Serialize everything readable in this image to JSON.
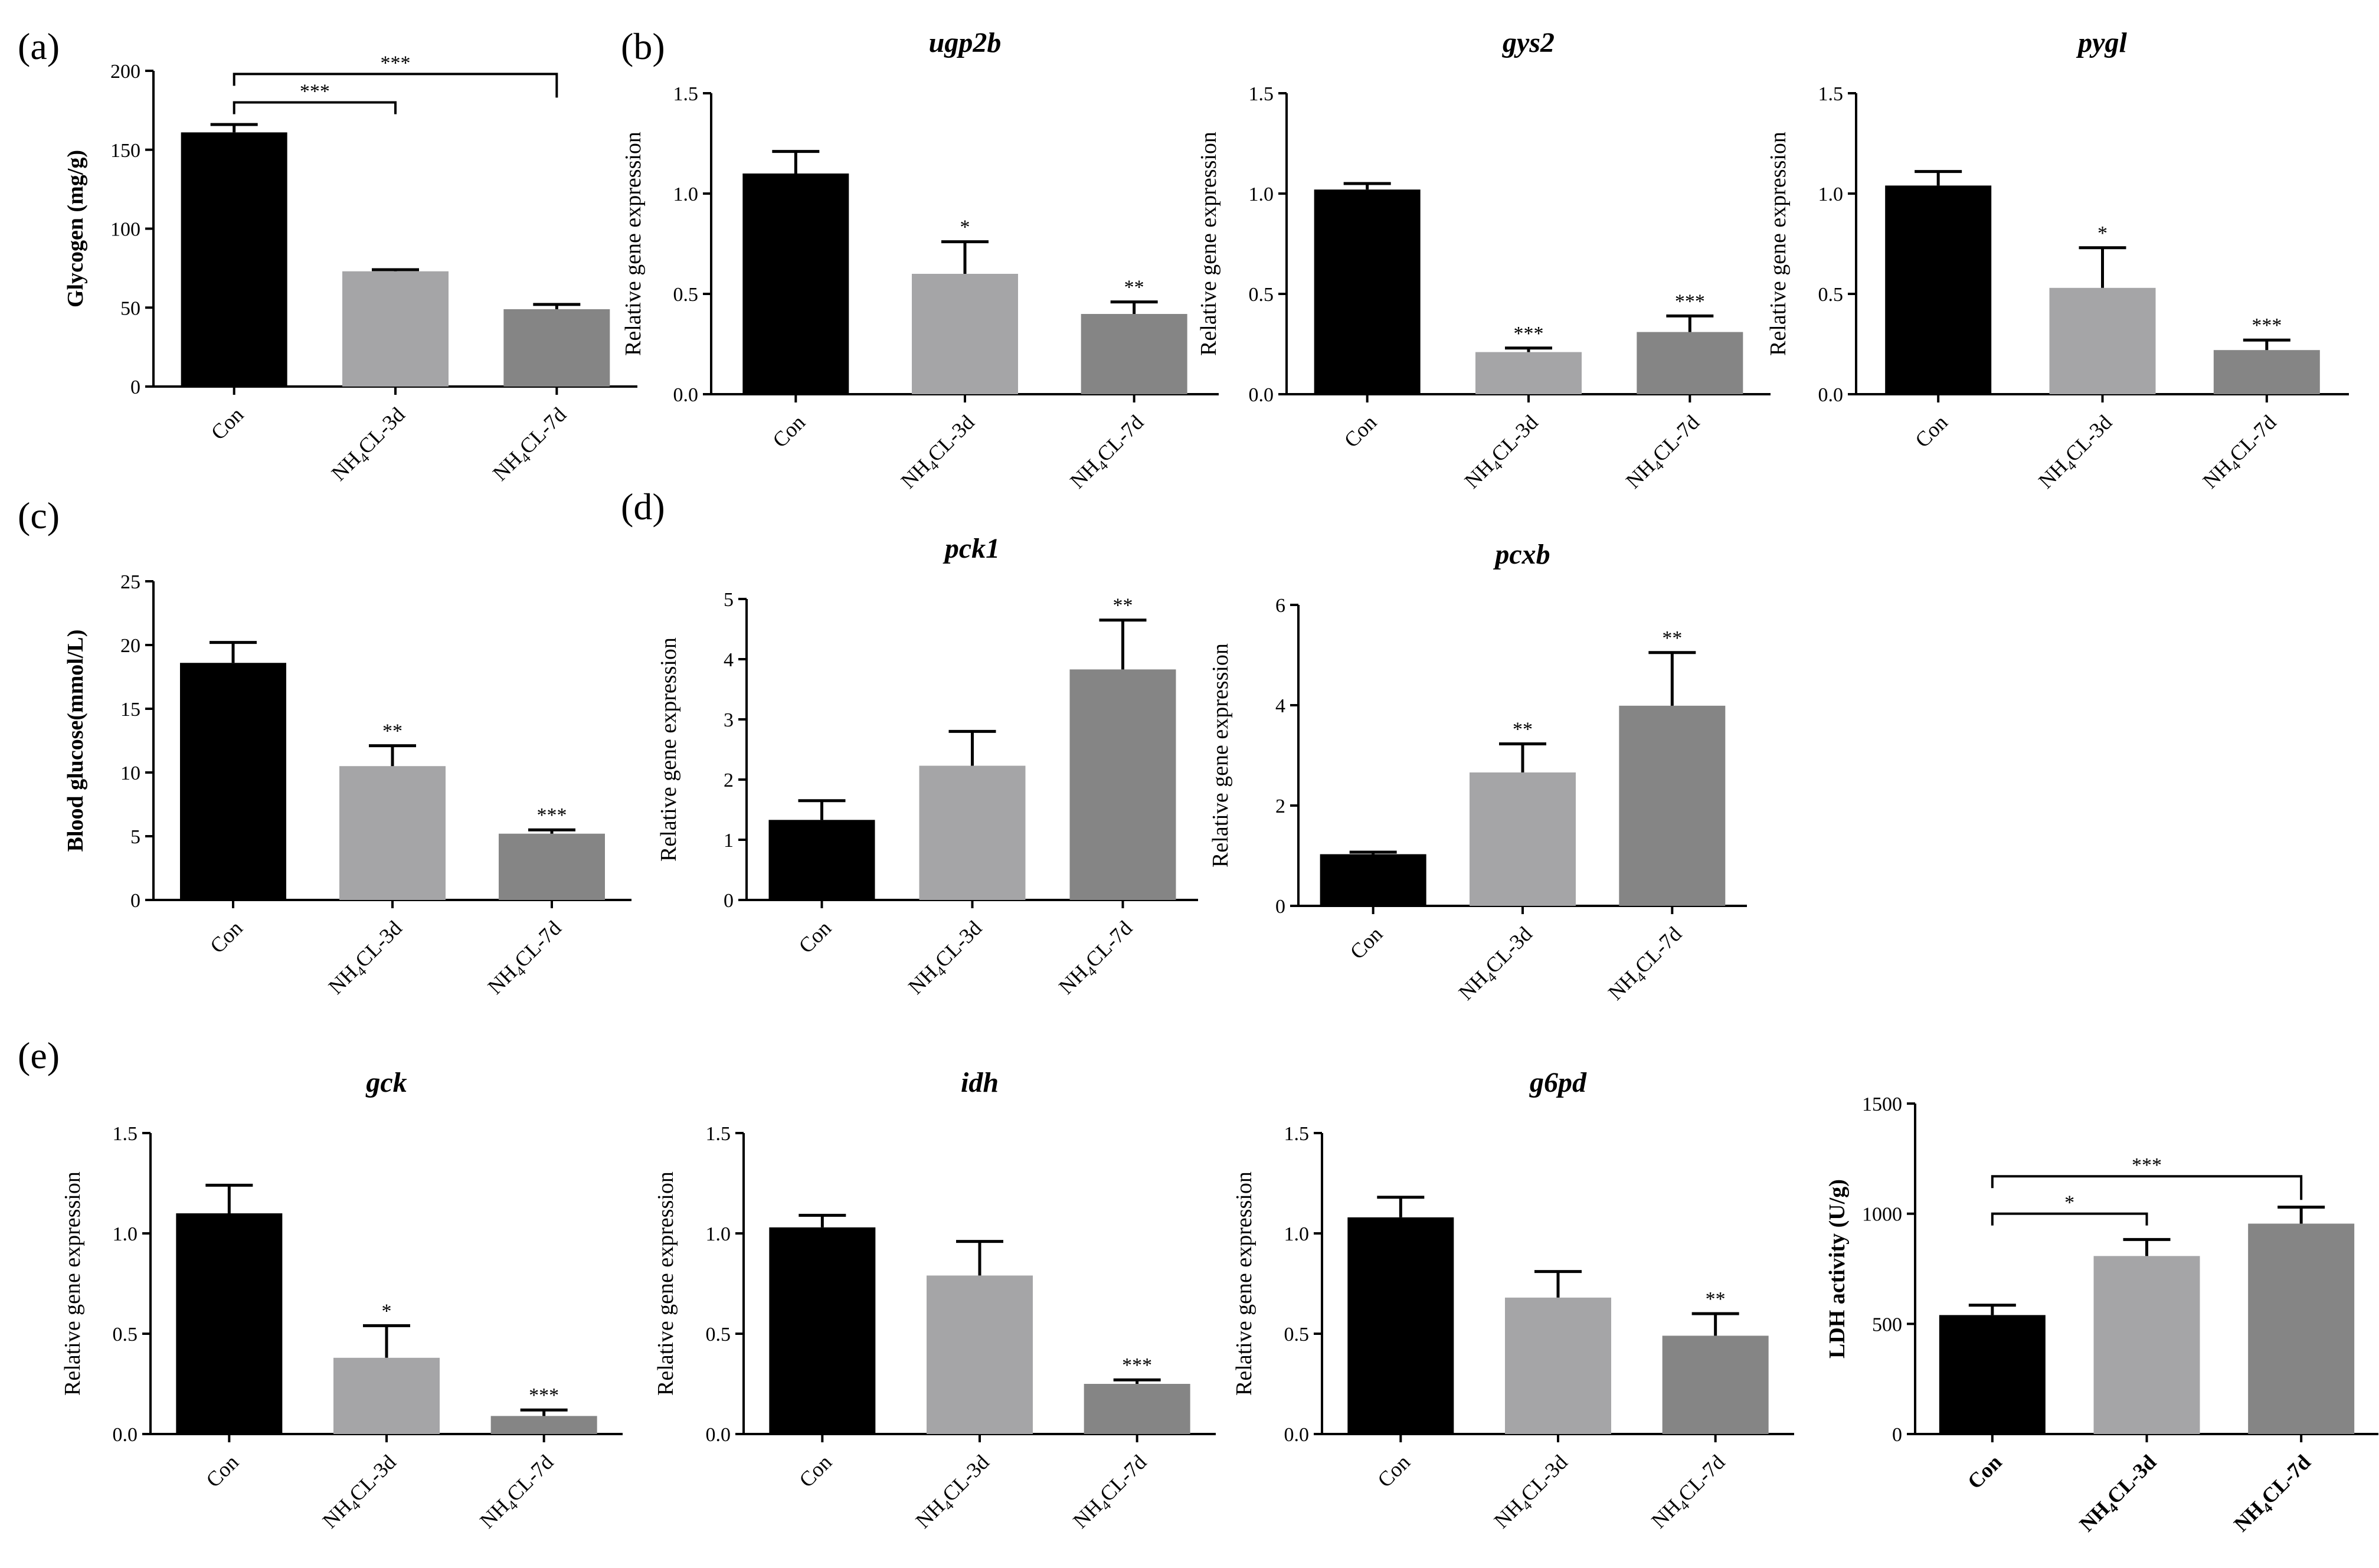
{
  "figure": {
    "panel_labels": [
      "(a)",
      "(b)",
      "(c)",
      "(d)",
      "(e)"
    ],
    "bar_colors": [
      "#000000",
      "#a5a5a7",
      "#858585"
    ]
  },
  "chart_data": [
    {
      "id": "a",
      "type": "bar",
      "title": "",
      "ylabel": "Glycogen (mg/g)",
      "ylabel_bold": true,
      "categories": [
        "Con",
        "NH4CL-3d",
        "NH4CL-7d"
      ],
      "values": [
        161,
        73,
        49
      ],
      "errors": [
        5,
        1,
        3
      ],
      "ylim": [
        0,
        200
      ],
      "yticks": [
        0,
        50,
        100,
        150,
        200
      ],
      "ytick_labels": [
        "0",
        "50",
        "100",
        "150",
        "200"
      ],
      "significance": [],
      "brackets": [
        {
          "from": 0,
          "to": 1,
          "label": "***",
          "y": 180
        },
        {
          "from": 0,
          "to": 2,
          "label": "***",
          "y": 198
        }
      ]
    },
    {
      "id": "b1",
      "type": "bar",
      "title": "ugp2b",
      "ylabel": "Relative gene expression",
      "categories": [
        "Con",
        "NH4CL-3d",
        "NH4CL-7d"
      ],
      "values": [
        1.1,
        0.6,
        0.4
      ],
      "errors": [
        0.11,
        0.16,
        0.06
      ],
      "ylim": [
        0,
        1.5
      ],
      "yticks": [
        0,
        0.5,
        1.0,
        1.5
      ],
      "ytick_labels": [
        "0.0",
        "0.5",
        "1.0",
        "1.5"
      ],
      "significance": [
        "",
        "*",
        "**"
      ],
      "brackets": []
    },
    {
      "id": "b2",
      "type": "bar",
      "title": "gys2",
      "ylabel": "Relative gene expression",
      "categories": [
        "Con",
        "NH4CL-3d",
        "NH4CL-7d"
      ],
      "values": [
        1.02,
        0.21,
        0.31
      ],
      "errors": [
        0.03,
        0.02,
        0.08
      ],
      "ylim": [
        0,
        1.5
      ],
      "yticks": [
        0,
        0.5,
        1.0,
        1.5
      ],
      "ytick_labels": [
        "0.0",
        "0.5",
        "1.0",
        "1.5"
      ],
      "significance": [
        "",
        "***",
        "***"
      ],
      "brackets": []
    },
    {
      "id": "b3",
      "type": "bar",
      "title": "pygl",
      "ylabel": "Relative gene expression",
      "categories": [
        "Con",
        "NH4CL-3d",
        "NH4CL-7d"
      ],
      "values": [
        1.04,
        0.53,
        0.22
      ],
      "errors": [
        0.07,
        0.2,
        0.05
      ],
      "ylim": [
        0,
        1.5
      ],
      "yticks": [
        0,
        0.5,
        1.0,
        1.5
      ],
      "ytick_labels": [
        "0.0",
        "0.5",
        "1.0",
        "1.5"
      ],
      "significance": [
        "",
        "*",
        "***"
      ],
      "brackets": []
    },
    {
      "id": "c",
      "type": "bar",
      "title": "",
      "ylabel": "Blood glucose(mmol/L)",
      "ylabel_bold": true,
      "categories": [
        "Con",
        "NH4CL-3d",
        "NH4CL-7d"
      ],
      "values": [
        18.6,
        10.5,
        5.2
      ],
      "errors": [
        1.6,
        1.6,
        0.3
      ],
      "ylim": [
        0,
        25
      ],
      "yticks": [
        0,
        5,
        10,
        15,
        20,
        25
      ],
      "ytick_labels": [
        "0",
        "5",
        "10",
        "15",
        "20",
        "25"
      ],
      "significance": [
        "",
        "**",
        "***"
      ],
      "brackets": []
    },
    {
      "id": "d1",
      "type": "bar",
      "title": "pck1",
      "ylabel": "Relative gene expression",
      "categories": [
        "Con",
        "NH4CL-3d",
        "NH4CL-7d"
      ],
      "values": [
        1.33,
        2.23,
        3.83
      ],
      "errors": [
        0.32,
        0.57,
        0.82
      ],
      "ylim": [
        0,
        5
      ],
      "yticks": [
        0,
        1,
        2,
        3,
        4,
        5
      ],
      "ytick_labels": [
        "0",
        "1",
        "2",
        "3",
        "4",
        "5"
      ],
      "significance": [
        "",
        "",
        "**"
      ],
      "brackets": []
    },
    {
      "id": "d2",
      "type": "bar",
      "title": "pcxb",
      "ylabel": "Relative gene expression",
      "categories": [
        "Con",
        "NH4CL-3d",
        "NH4CL-7d"
      ],
      "values": [
        1.03,
        2.66,
        3.99
      ],
      "errors": [
        0.04,
        0.57,
        1.06
      ],
      "ylim": [
        0,
        6
      ],
      "yticks": [
        0,
        2,
        4,
        6
      ],
      "ytick_labels": [
        "0",
        "2",
        "4",
        "6"
      ],
      "significance": [
        "",
        "**",
        "**"
      ],
      "brackets": []
    },
    {
      "id": "e1",
      "type": "bar",
      "title": "gck",
      "ylabel": "Relative gene expression",
      "categories": [
        "Con",
        "NH4CL-3d",
        "NH4CL-7d"
      ],
      "values": [
        1.1,
        0.38,
        0.09
      ],
      "errors": [
        0.14,
        0.16,
        0.03
      ],
      "ylim": [
        0,
        1.5
      ],
      "yticks": [
        0,
        0.5,
        1.0,
        1.5
      ],
      "ytick_labels": [
        "0.0",
        "0.5",
        "1.0",
        "1.5"
      ],
      "significance": [
        "",
        "*",
        "***"
      ],
      "brackets": []
    },
    {
      "id": "e2",
      "type": "bar",
      "title": "idh",
      "ylabel": "Relative gene expression",
      "categories": [
        "Con",
        "NH4CL-3d",
        "NH4CL-7d"
      ],
      "values": [
        1.03,
        0.79,
        0.25
      ],
      "errors": [
        0.06,
        0.17,
        0.02
      ],
      "ylim": [
        0,
        1.5
      ],
      "yticks": [
        0,
        0.5,
        1.0,
        1.5
      ],
      "ytick_labels": [
        "0.0",
        "0.5",
        "1.0",
        "1.5"
      ],
      "significance": [
        "",
        "",
        "***"
      ],
      "brackets": []
    },
    {
      "id": "e3",
      "type": "bar",
      "title": "g6pd",
      "ylabel": "Relative gene expression",
      "categories": [
        "Con",
        "NH4CL-3d",
        "NH4CL-7d"
      ],
      "values": [
        1.08,
        0.68,
        0.49
      ],
      "errors": [
        0.1,
        0.13,
        0.11
      ],
      "ylim": [
        0,
        1.5
      ],
      "yticks": [
        0,
        0.5,
        1.0,
        1.5
      ],
      "ytick_labels": [
        "0.0",
        "0.5",
        "1.0",
        "1.5"
      ],
      "significance": [
        "",
        "",
        "**"
      ],
      "brackets": []
    },
    {
      "id": "e4",
      "type": "bar",
      "title": "",
      "ylabel": "LDH activity (U/g)",
      "ylabel_bold": true,
      "categories": [
        "Con",
        "NH4CL-3d",
        "NH4CL-7d"
      ],
      "categories_bold": true,
      "values": [
        540,
        808,
        955
      ],
      "errors": [
        45,
        75,
        75
      ],
      "ylim": [
        0,
        1500
      ],
      "yticks": [
        0,
        500,
        1000,
        1500
      ],
      "ytick_labels": [
        "0",
        "500",
        "1000",
        "1500"
      ],
      "significance": [],
      "brackets": [
        {
          "from": 0,
          "to": 1,
          "label": "*",
          "y": 1000
        },
        {
          "from": 0,
          "to": 2,
          "label": "***",
          "y": 1170
        }
      ]
    }
  ]
}
